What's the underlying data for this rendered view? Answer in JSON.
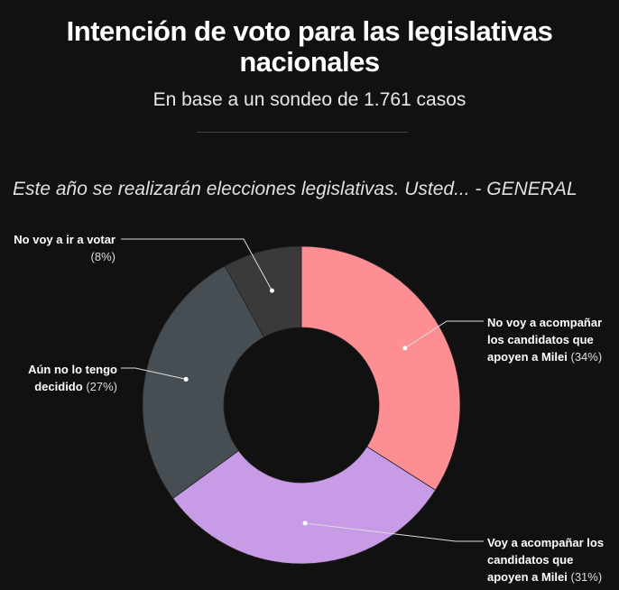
{
  "title": "Intención de voto para las legislativas nacionales",
  "subtitle": "En base a un sondeo de 1.761 casos",
  "question": "Este año se realizarán elecciones legislativas. Usted... - GENERAL",
  "chart_data": {
    "type": "pie",
    "donut": true,
    "title": "Intención de voto para las legislativas nacionales",
    "categories": [
      "No voy a acompañar los candidatos que apoyen a Milei",
      "Voy a acompañar los candidatos que apoyen a Milei",
      "Aún no lo tengo decidido",
      "No voy a ir a votar"
    ],
    "values": [
      34,
      31,
      27,
      8
    ],
    "colors": [
      "#fd8f94",
      "#c89be6",
      "#464e54",
      "#3a3a3b"
    ],
    "labels": [
      {
        "text": "No voy a acompañar los candidatos que apoyen a Milei",
        "pct": "(34%)"
      },
      {
        "text": "Voy a acompañar los candidatos que apoyen a Milei",
        "pct": "(31%)"
      },
      {
        "text": "Aún no lo tengo decidido",
        "pct": "(27%)"
      },
      {
        "text": "No voy a ir a votar",
        "pct": "(8%)"
      }
    ]
  }
}
